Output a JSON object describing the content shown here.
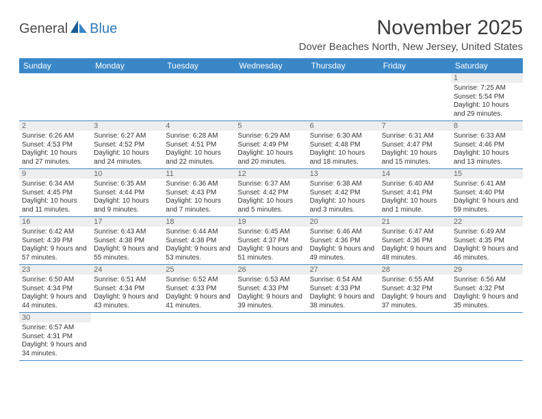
{
  "logo": {
    "text1": "General",
    "text2": "Blue"
  },
  "title": "November 2025",
  "location": "Dover Beaches North, New Jersey, United States",
  "colors": {
    "header_bg": "#3a87c8",
    "header_text": "#ffffff",
    "daynum_bg": "#eeeeee",
    "daynum_text": "#666666",
    "row_border": "#3a87c8",
    "logo_gray": "#4a4a4a",
    "logo_blue": "#2f78b7"
  },
  "dayNames": [
    "Sunday",
    "Monday",
    "Tuesday",
    "Wednesday",
    "Thursday",
    "Friday",
    "Saturday"
  ],
  "weeks": [
    [
      null,
      null,
      null,
      null,
      null,
      null,
      {
        "n": "1",
        "sr": "7:25 AM",
        "ss": "5:54 PM",
        "dl": "10 hours and 29 minutes."
      }
    ],
    [
      {
        "n": "2",
        "sr": "6:26 AM",
        "ss": "4:53 PM",
        "dl": "10 hours and 27 minutes."
      },
      {
        "n": "3",
        "sr": "6:27 AM",
        "ss": "4:52 PM",
        "dl": "10 hours and 24 minutes."
      },
      {
        "n": "4",
        "sr": "6:28 AM",
        "ss": "4:51 PM",
        "dl": "10 hours and 22 minutes."
      },
      {
        "n": "5",
        "sr": "6:29 AM",
        "ss": "4:49 PM",
        "dl": "10 hours and 20 minutes."
      },
      {
        "n": "6",
        "sr": "6:30 AM",
        "ss": "4:48 PM",
        "dl": "10 hours and 18 minutes."
      },
      {
        "n": "7",
        "sr": "6:31 AM",
        "ss": "4:47 PM",
        "dl": "10 hours and 15 minutes."
      },
      {
        "n": "8",
        "sr": "6:33 AM",
        "ss": "4:46 PM",
        "dl": "10 hours and 13 minutes."
      }
    ],
    [
      {
        "n": "9",
        "sr": "6:34 AM",
        "ss": "4:45 PM",
        "dl": "10 hours and 11 minutes."
      },
      {
        "n": "10",
        "sr": "6:35 AM",
        "ss": "4:44 PM",
        "dl": "10 hours and 9 minutes."
      },
      {
        "n": "11",
        "sr": "6:36 AM",
        "ss": "4:43 PM",
        "dl": "10 hours and 7 minutes."
      },
      {
        "n": "12",
        "sr": "6:37 AM",
        "ss": "4:42 PM",
        "dl": "10 hours and 5 minutes."
      },
      {
        "n": "13",
        "sr": "6:38 AM",
        "ss": "4:42 PM",
        "dl": "10 hours and 3 minutes."
      },
      {
        "n": "14",
        "sr": "6:40 AM",
        "ss": "4:41 PM",
        "dl": "10 hours and 1 minute."
      },
      {
        "n": "15",
        "sr": "6:41 AM",
        "ss": "4:40 PM",
        "dl": "9 hours and 59 minutes."
      }
    ],
    [
      {
        "n": "16",
        "sr": "6:42 AM",
        "ss": "4:39 PM",
        "dl": "9 hours and 57 minutes."
      },
      {
        "n": "17",
        "sr": "6:43 AM",
        "ss": "4:38 PM",
        "dl": "9 hours and 55 minutes."
      },
      {
        "n": "18",
        "sr": "6:44 AM",
        "ss": "4:38 PM",
        "dl": "9 hours and 53 minutes."
      },
      {
        "n": "19",
        "sr": "6:45 AM",
        "ss": "4:37 PM",
        "dl": "9 hours and 51 minutes."
      },
      {
        "n": "20",
        "sr": "6:46 AM",
        "ss": "4:36 PM",
        "dl": "9 hours and 49 minutes."
      },
      {
        "n": "21",
        "sr": "6:47 AM",
        "ss": "4:36 PM",
        "dl": "9 hours and 48 minutes."
      },
      {
        "n": "22",
        "sr": "6:49 AM",
        "ss": "4:35 PM",
        "dl": "9 hours and 46 minutes."
      }
    ],
    [
      {
        "n": "23",
        "sr": "6:50 AM",
        "ss": "4:34 PM",
        "dl": "9 hours and 44 minutes."
      },
      {
        "n": "24",
        "sr": "6:51 AM",
        "ss": "4:34 PM",
        "dl": "9 hours and 43 minutes."
      },
      {
        "n": "25",
        "sr": "6:52 AM",
        "ss": "4:33 PM",
        "dl": "9 hours and 41 minutes."
      },
      {
        "n": "26",
        "sr": "6:53 AM",
        "ss": "4:33 PM",
        "dl": "9 hours and 39 minutes."
      },
      {
        "n": "27",
        "sr": "6:54 AM",
        "ss": "4:33 PM",
        "dl": "9 hours and 38 minutes."
      },
      {
        "n": "28",
        "sr": "6:55 AM",
        "ss": "4:32 PM",
        "dl": "9 hours and 37 minutes."
      },
      {
        "n": "29",
        "sr": "6:56 AM",
        "ss": "4:32 PM",
        "dl": "9 hours and 35 minutes."
      }
    ],
    [
      {
        "n": "30",
        "sr": "6:57 AM",
        "ss": "4:31 PM",
        "dl": "9 hours and 34 minutes."
      },
      null,
      null,
      null,
      null,
      null,
      null
    ]
  ]
}
